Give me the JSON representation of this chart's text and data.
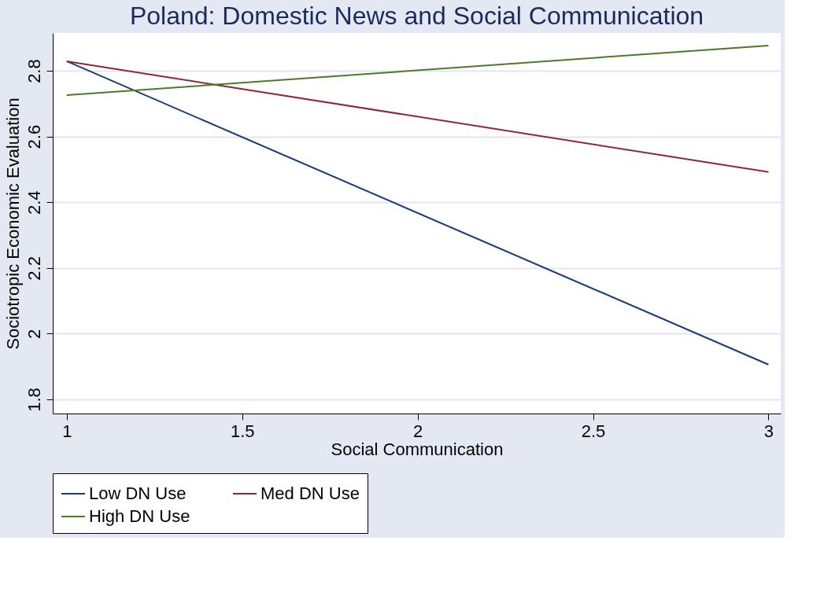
{
  "chart_data": {
    "type": "line",
    "title": "Poland: Domestic News and Social Communication",
    "xlabel": "Social Communication",
    "ylabel": "Sociotropic Economic Evaluation",
    "x": [
      1,
      3
    ],
    "series": [
      {
        "name": "Low DN Use",
        "color": "#1a3a7a",
        "values": [
          2.829,
          1.906
        ]
      },
      {
        "name": "Med DN Use",
        "color": "#8b2a35",
        "values": [
          2.829,
          2.492
        ]
      },
      {
        "name": "High DN Use",
        "color": "#4a7a2a",
        "values": [
          2.726,
          2.877
        ]
      }
    ],
    "xlim": [
      0.96,
      3.035
    ],
    "xticks": [
      1,
      1.5,
      2,
      2.5,
      3
    ],
    "ylim": [
      1.757,
      2.915
    ],
    "yticks": [
      1.8,
      2,
      2.2,
      2.4,
      2.6,
      2.8
    ],
    "grid": "y",
    "legend": "bottom",
    "marker": "none",
    "line_style": "solid"
  }
}
